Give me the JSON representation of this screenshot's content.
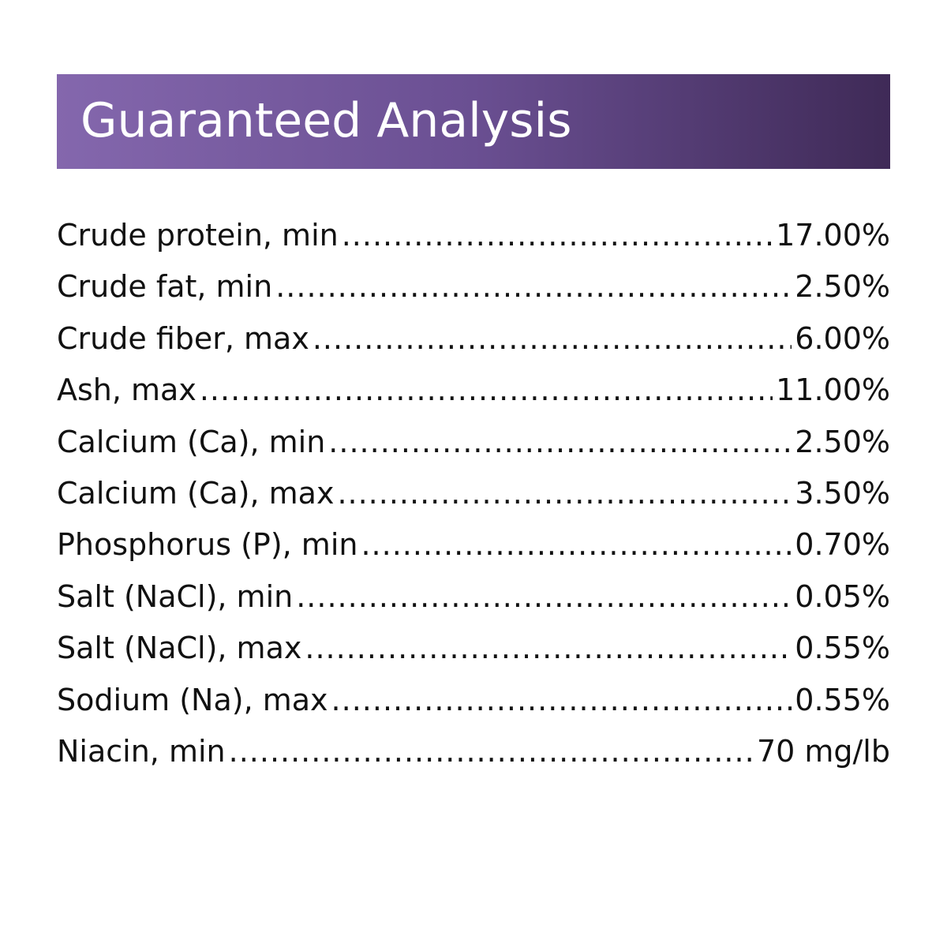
{
  "header": {
    "title": "Guaranteed Analysis"
  },
  "table": {
    "rows": [
      [
        "Crude protein, min",
        "17.00%"
      ],
      [
        "Crude fat, min",
        "2.50%"
      ],
      [
        "Crude fiber, max",
        "6.00%"
      ],
      [
        "Ash, max",
        "11.00%"
      ],
      [
        "Calcium (Ca), min",
        "2.50%"
      ],
      [
        "Calcium (Ca), max",
        "3.50%"
      ],
      [
        "Phosphorus (P), min",
        "0.70%"
      ],
      [
        "Salt (NaCl), min",
        "0.05%"
      ],
      [
        "Salt (NaCl), max",
        "0.55%"
      ],
      [
        "Sodium (Na), max",
        "0.55%"
      ],
      [
        "Niacin, min",
        "70 mg/lb"
      ]
    ]
  }
}
